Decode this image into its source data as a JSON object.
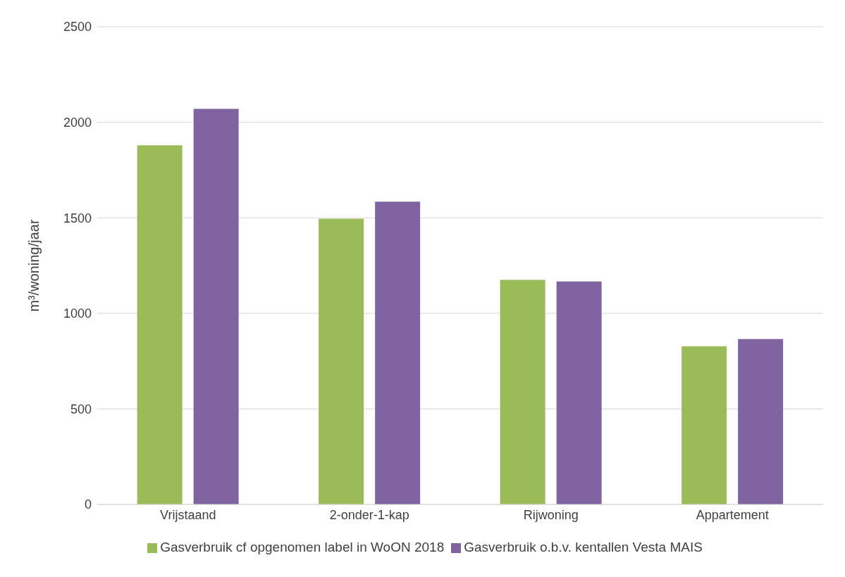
{
  "chart_data": {
    "type": "bar",
    "ylabel": "m³/woning/jaar",
    "categories": [
      "Vrijstaand",
      "2-onder-1-kap",
      "Rijwoning",
      "Appartement"
    ],
    "series": [
      {
        "name": "Gasverbruik cf opgenomen label in WoON 2018",
        "color": "#9bbb59",
        "values": [
          1880,
          1495,
          1175,
          828
        ]
      },
      {
        "name": "Gasverbruik o.b.v. kentallen Vesta MAIS",
        "color": "#8064a2",
        "values": [
          2070,
          1585,
          1167,
          866
        ]
      }
    ],
    "ylim": [
      0,
      2500
    ],
    "yticks": [
      0,
      500,
      1000,
      1500,
      2000,
      2500
    ],
    "grid": "y",
    "legend": "bottom"
  }
}
